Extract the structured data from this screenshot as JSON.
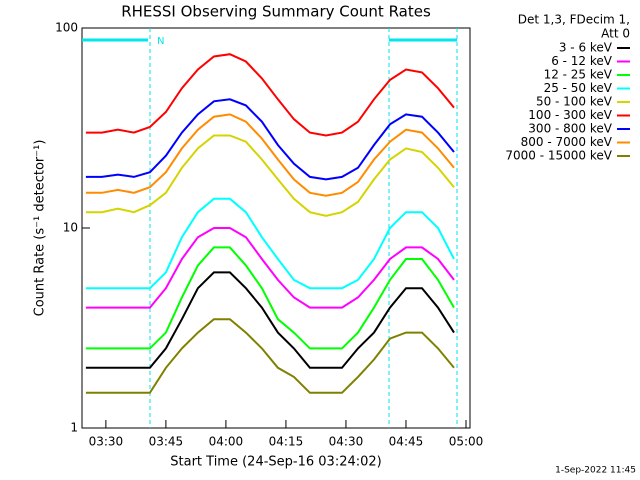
{
  "chart_data": {
    "type": "line",
    "title": "RHESSI Observing Summary Count Rates",
    "x_label": "Start Time (24-Sep-16 03:24:02)",
    "y_label": "Count Rate (s⁻¹ detector⁻¹)",
    "legend_title": [
      "Det 1,3, FDecim 1,",
      "Att 0"
    ],
    "annotation": "N",
    "timestamp": "1-Sep-2022 11:45",
    "log_y": true,
    "xlim": [
      "03:24:02",
      "05:01"
    ],
    "xticks": [
      "03:30",
      "03:45",
      "04:00",
      "04:15",
      "04:30",
      "04:45",
      "05:00"
    ],
    "ylim": [
      1,
      100
    ],
    "yticks": [
      1,
      10,
      100
    ],
    "x": [
      "03:25",
      "03:29",
      "03:33",
      "03:37",
      "03:41",
      "03:45",
      "03:49",
      "03:53",
      "03:57",
      "04:01",
      "04:05",
      "04:09",
      "04:13",
      "04:17",
      "04:21",
      "04:25",
      "04:29",
      "04:33",
      "04:37",
      "04:41",
      "04:45",
      "04:49",
      "04:53",
      "04:57"
    ],
    "series": [
      {
        "name": "3 - 6 keV",
        "color": "#000000",
        "values": [
          2,
          2,
          2,
          2,
          2,
          2.5,
          3.5,
          5,
          6,
          6,
          5,
          4,
          3,
          2.5,
          2,
          2,
          2,
          2.5,
          3,
          4,
          5,
          5,
          4,
          3
        ]
      },
      {
        "name": "6 - 12 keV",
        "color": "#ff00ff",
        "values": [
          4,
          4,
          4,
          4,
          4,
          5,
          7,
          9,
          10,
          10,
          9,
          7,
          5.5,
          4.5,
          4,
          4,
          4,
          4.5,
          5.5,
          7,
          8,
          8,
          7,
          5.5
        ]
      },
      {
        "name": "12 - 25 keV",
        "color": "#00ff00",
        "values": [
          2.5,
          2.5,
          2.5,
          2.5,
          2.5,
          3,
          4.5,
          6.5,
          8,
          8,
          6.5,
          5,
          3.5,
          3,
          2.5,
          2.5,
          2.5,
          3,
          4,
          5.5,
          7,
          7,
          5.5,
          4
        ]
      },
      {
        "name": "25 - 50 keV",
        "color": "#00ffff",
        "values": [
          5,
          5,
          5,
          5,
          5,
          6,
          9,
          12,
          14,
          14,
          12,
          9,
          7,
          5.5,
          5,
          5,
          5,
          5.5,
          7,
          10,
          12,
          12,
          10,
          7
        ]
      },
      {
        "name": "50 - 100 keV",
        "color": "#d4d400",
        "values": [
          12,
          12,
          12.5,
          12,
          13,
          15,
          20,
          25,
          29,
          29,
          27,
          22,
          17.5,
          14,
          12,
          11.5,
          12,
          13.5,
          17.5,
          22,
          25,
          24,
          20,
          16
        ]
      },
      {
        "name": "100 - 300 keV",
        "color": "#ff0000",
        "values": [
          30,
          30,
          31,
          30,
          32,
          38,
          50,
          62,
          72,
          74,
          68,
          56,
          44,
          35,
          30,
          29,
          30,
          34,
          44,
          55,
          62,
          60,
          50,
          40
        ]
      },
      {
        "name": "300 - 800 keV",
        "color": "#0000ff",
        "values": [
          18,
          18,
          18.5,
          18,
          19,
          23,
          30,
          37,
          43,
          44,
          41,
          34,
          26,
          21,
          18,
          17.5,
          18,
          20,
          26,
          33,
          37,
          36,
          30,
          24
        ]
      },
      {
        "name": "800 - 7000 keV",
        "color": "#ff8c00",
        "values": [
          15,
          15,
          15.5,
          15,
          16,
          19,
          25,
          31,
          36,
          37,
          34,
          28,
          22,
          17.5,
          15,
          14.5,
          15,
          17,
          22,
          27,
          31,
          30,
          25,
          20
        ]
      },
      {
        "name": "7000 - 15000 keV",
        "color": "#808000",
        "values": [
          1.5,
          1.5,
          1.5,
          1.5,
          1.5,
          2,
          2.5,
          3,
          3.5,
          3.5,
          3,
          2.5,
          2,
          1.8,
          1.5,
          1.5,
          1.5,
          1.8,
          2.2,
          2.8,
          3,
          3,
          2.5,
          2
        ]
      }
    ]
  }
}
